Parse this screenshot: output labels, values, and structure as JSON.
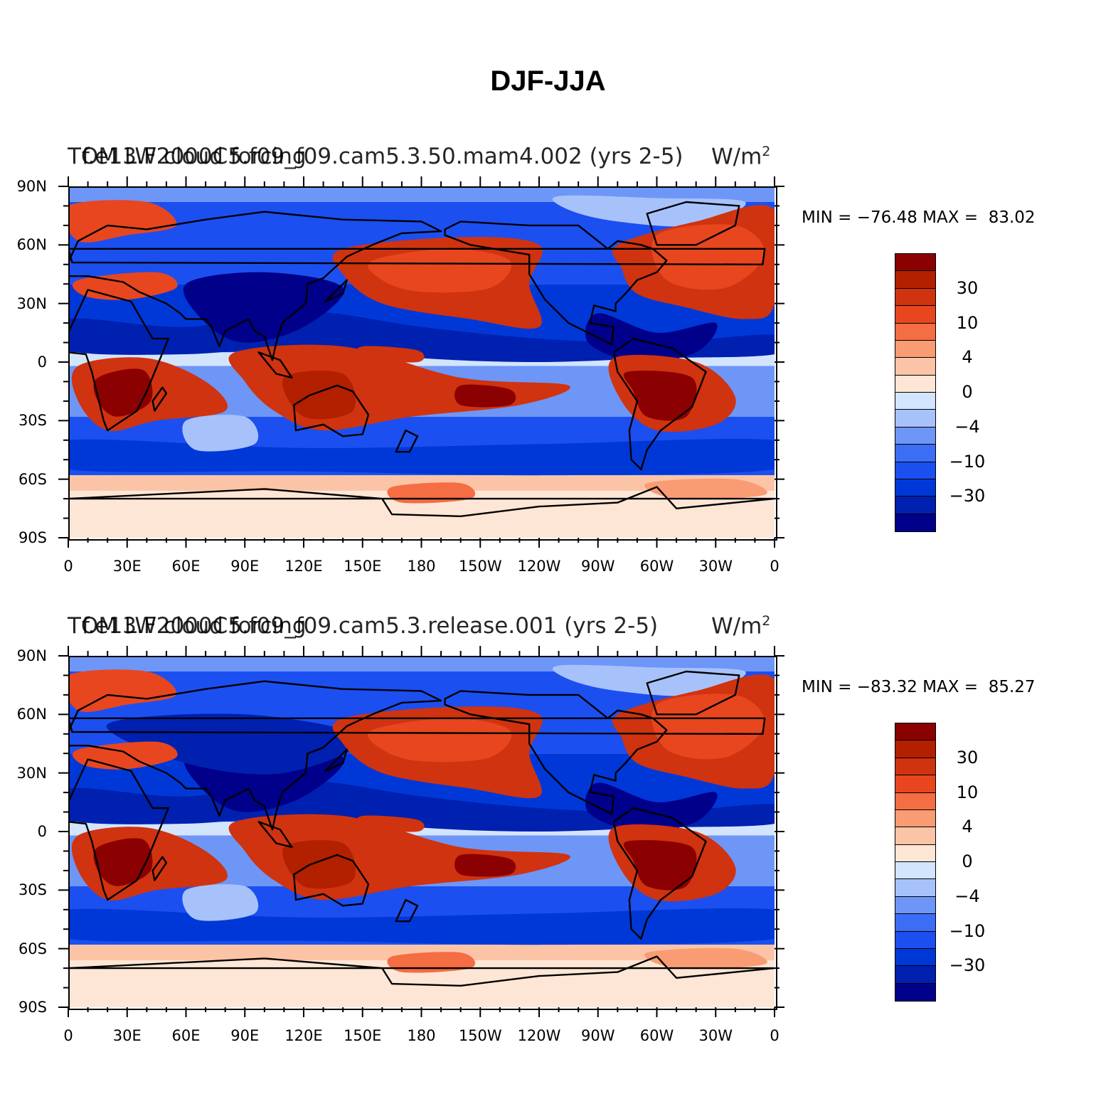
{
  "title": "DJF-JJA",
  "colors": {
    "levels": [
      "#00008b",
      "#0020b0",
      "#0038d8",
      "#1c4ff0",
      "#3b6ef5",
      "#6e96f7",
      "#a7c2fb",
      "#d3e4fd",
      "#fde6d6",
      "#fcc4a6",
      "#f99c74",
      "#f46d43",
      "#e8461f",
      "#d0330f",
      "#b22000",
      "#8b0000"
    ],
    "coast": "#000000"
  },
  "colorbar_labels": [
    "30",
    "10",
    "4",
    "0",
    "−4",
    "−10",
    "−30"
  ],
  "axes": {
    "lat_labels": [
      "90N",
      "60N",
      "30N",
      "0",
      "30S",
      "60S",
      "90S"
    ],
    "lon_labels": [
      "0",
      "30E",
      "60E",
      "90E",
      "120E",
      "150E",
      "180",
      "150W",
      "120W",
      "90W",
      "60W",
      "30W",
      "0"
    ]
  },
  "panels": [
    {
      "title_left": "TOM LW cloud forcing",
      "title_center": "f.e13.F2000C5.f09_f09.cam5.3.50.mam4.002 (yrs 2-5)",
      "title_right": "W/m",
      "title_right_sup": "2",
      "minmax": "MIN = −76.48 MAX =  83.02",
      "min": -76.48,
      "max": 83.02
    },
    {
      "title_left": "TOM LW cloud forcing",
      "title_center": "f.e13.F2000C5.f09_f09.cam5.3.release.001 (yrs 2-5)",
      "title_right": "W/m",
      "title_right_sup": "2",
      "minmax": "MIN = −83.32 MAX =  85.27",
      "min": -83.32,
      "max": 85.27
    }
  ]
}
